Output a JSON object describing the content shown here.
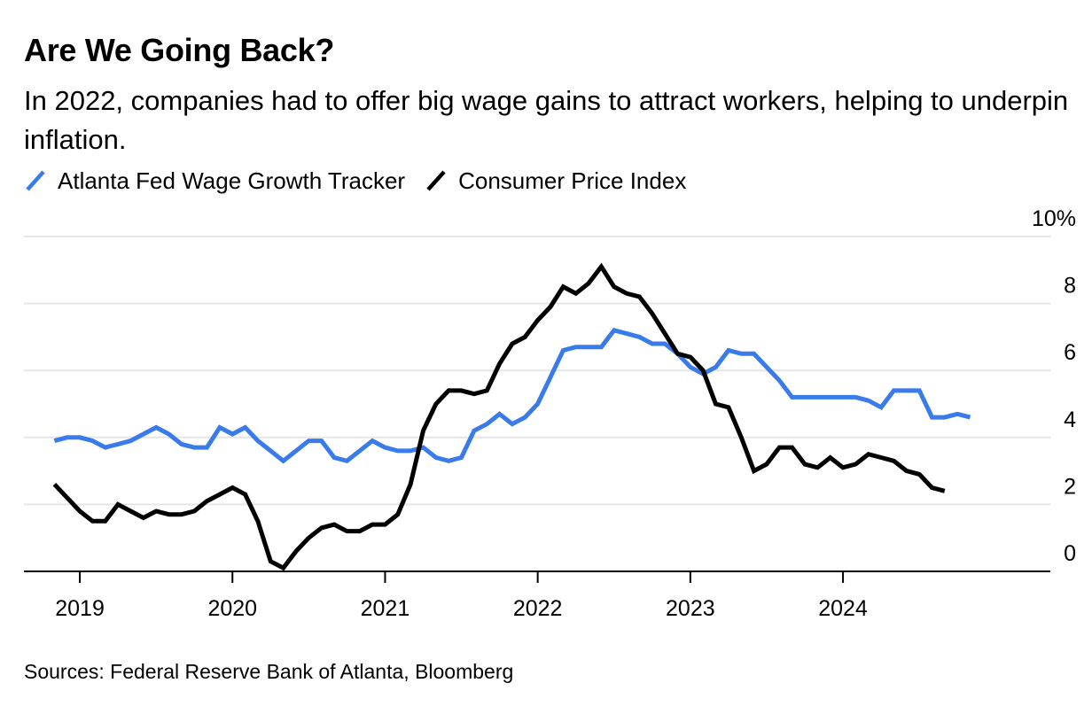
{
  "title": "Are We Going Back?",
  "subtitle": "In 2022, companies had to offer big wage gains to attract workers, helping to underpin inflation.",
  "source": "Sources: Federal Reserve Bank of Atlanta, Bloomberg",
  "colors": {
    "wage": "#3a7bec",
    "cpi": "#000000",
    "grid": "#e6e6e6",
    "axis": "#000000"
  },
  "chart_data": {
    "type": "line",
    "title": "Are We Going Back?",
    "subtitle": "In 2022, companies had to offer big wage gains to attract workers, helping to underpin inflation.",
    "xlabel": "",
    "ylabel": "",
    "ylim": [
      0,
      10
    ],
    "y_ticks": [
      0,
      2,
      4,
      6,
      8,
      10
    ],
    "y_tick_labels": [
      "0",
      "2",
      "4",
      "6",
      "8",
      "10%"
    ],
    "y_axis_position": "right",
    "x_tick_labels": [
      "2019",
      "2020",
      "2021",
      "2022",
      "2023",
      "2024"
    ],
    "x_range": [
      "2018-10",
      "2025-03"
    ],
    "grid": true,
    "legend_position": "top-left",
    "series": [
      {
        "name": "Atlanta Fed Wage Growth Tracker",
        "color": "#3a7bec",
        "points": [
          [
            "2018-11",
            3.9
          ],
          [
            "2018-12",
            4.0
          ],
          [
            "2019-01",
            4.0
          ],
          [
            "2019-02",
            3.9
          ],
          [
            "2019-03",
            3.7
          ],
          [
            "2019-04",
            3.8
          ],
          [
            "2019-05",
            3.9
          ],
          [
            "2019-06",
            4.1
          ],
          [
            "2019-07",
            4.3
          ],
          [
            "2019-08",
            4.1
          ],
          [
            "2019-09",
            3.8
          ],
          [
            "2019-10",
            3.7
          ],
          [
            "2019-11",
            3.7
          ],
          [
            "2019-12",
            4.3
          ],
          [
            "2020-01",
            4.1
          ],
          [
            "2020-02",
            4.3
          ],
          [
            "2020-03",
            3.9
          ],
          [
            "2020-04",
            3.6
          ],
          [
            "2020-05",
            3.3
          ],
          [
            "2020-06",
            3.6
          ],
          [
            "2020-07",
            3.9
          ],
          [
            "2020-08",
            3.9
          ],
          [
            "2020-09",
            3.4
          ],
          [
            "2020-10",
            3.3
          ],
          [
            "2020-11",
            3.6
          ],
          [
            "2020-12",
            3.9
          ],
          [
            "2021-01",
            3.7
          ],
          [
            "2021-02",
            3.6
          ],
          [
            "2021-03",
            3.6
          ],
          [
            "2021-04",
            3.7
          ],
          [
            "2021-05",
            3.4
          ],
          [
            "2021-06",
            3.3
          ],
          [
            "2021-07",
            3.4
          ],
          [
            "2021-08",
            4.2
          ],
          [
            "2021-09",
            4.4
          ],
          [
            "2021-10",
            4.7
          ],
          [
            "2021-11",
            4.4
          ],
          [
            "2021-12",
            4.6
          ],
          [
            "2022-01",
            5.0
          ],
          [
            "2022-02",
            5.8
          ],
          [
            "2022-03",
            6.6
          ],
          [
            "2022-04",
            6.7
          ],
          [
            "2022-05",
            6.7
          ],
          [
            "2022-06",
            6.7
          ],
          [
            "2022-07",
            7.2
          ],
          [
            "2022-08",
            7.1
          ],
          [
            "2022-09",
            7.0
          ],
          [
            "2022-10",
            6.8
          ],
          [
            "2022-11",
            6.8
          ],
          [
            "2022-12",
            6.5
          ],
          [
            "2023-01",
            6.1
          ],
          [
            "2023-02",
            5.9
          ],
          [
            "2023-03",
            6.1
          ],
          [
            "2023-04",
            6.6
          ],
          [
            "2023-05",
            6.5
          ],
          [
            "2023-06",
            6.5
          ],
          [
            "2023-07",
            6.1
          ],
          [
            "2023-08",
            5.7
          ],
          [
            "2023-09",
            5.2
          ],
          [
            "2023-10",
            5.2
          ],
          [
            "2023-11",
            5.2
          ],
          [
            "2023-12",
            5.2
          ],
          [
            "2024-01",
            5.2
          ],
          [
            "2024-02",
            5.2
          ],
          [
            "2024-03",
            5.1
          ],
          [
            "2024-04",
            4.9
          ],
          [
            "2024-05",
            5.4
          ],
          [
            "2024-06",
            5.4
          ],
          [
            "2024-07",
            5.4
          ],
          [
            "2024-08",
            4.6
          ],
          [
            "2024-09",
            4.6
          ],
          [
            "2024-10",
            4.7
          ],
          [
            "2024-11",
            4.6
          ]
        ]
      },
      {
        "name": "Consumer Price Index",
        "color": "#000000",
        "points": [
          [
            "2018-11",
            2.6
          ],
          [
            "2018-12",
            2.2
          ],
          [
            "2019-01",
            1.8
          ],
          [
            "2019-02",
            1.5
          ],
          [
            "2019-03",
            1.5
          ],
          [
            "2019-04",
            2.0
          ],
          [
            "2019-05",
            1.8
          ],
          [
            "2019-06",
            1.6
          ],
          [
            "2019-07",
            1.8
          ],
          [
            "2019-08",
            1.7
          ],
          [
            "2019-09",
            1.7
          ],
          [
            "2019-10",
            1.8
          ],
          [
            "2019-11",
            2.1
          ],
          [
            "2019-12",
            2.3
          ],
          [
            "2020-01",
            2.5
          ],
          [
            "2020-02",
            2.3
          ],
          [
            "2020-03",
            1.5
          ],
          [
            "2020-04",
            0.3
          ],
          [
            "2020-05",
            0.1
          ],
          [
            "2020-06",
            0.6
          ],
          [
            "2020-07",
            1.0
          ],
          [
            "2020-08",
            1.3
          ],
          [
            "2020-09",
            1.4
          ],
          [
            "2020-10",
            1.2
          ],
          [
            "2020-11",
            1.2
          ],
          [
            "2020-12",
            1.4
          ],
          [
            "2021-01",
            1.4
          ],
          [
            "2021-02",
            1.7
          ],
          [
            "2021-03",
            2.6
          ],
          [
            "2021-04",
            4.2
          ],
          [
            "2021-05",
            5.0
          ],
          [
            "2021-06",
            5.4
          ],
          [
            "2021-07",
            5.4
          ],
          [
            "2021-08",
            5.3
          ],
          [
            "2021-09",
            5.4
          ],
          [
            "2021-10",
            6.2
          ],
          [
            "2021-11",
            6.8
          ],
          [
            "2021-12",
            7.0
          ],
          [
            "2022-01",
            7.5
          ],
          [
            "2022-02",
            7.9
          ],
          [
            "2022-03",
            8.5
          ],
          [
            "2022-04",
            8.3
          ],
          [
            "2022-05",
            8.6
          ],
          [
            "2022-06",
            9.1
          ],
          [
            "2022-07",
            8.5
          ],
          [
            "2022-08",
            8.3
          ],
          [
            "2022-09",
            8.2
          ],
          [
            "2022-10",
            7.7
          ],
          [
            "2022-11",
            7.1
          ],
          [
            "2022-12",
            6.5
          ],
          [
            "2023-01",
            6.4
          ],
          [
            "2023-02",
            6.0
          ],
          [
            "2023-03",
            5.0
          ],
          [
            "2023-04",
            4.9
          ],
          [
            "2023-05",
            4.0
          ],
          [
            "2023-06",
            3.0
          ],
          [
            "2023-07",
            3.2
          ],
          [
            "2023-08",
            3.7
          ],
          [
            "2023-09",
            3.7
          ],
          [
            "2023-10",
            3.2
          ],
          [
            "2023-11",
            3.1
          ],
          [
            "2023-12",
            3.4
          ],
          [
            "2024-01",
            3.1
          ],
          [
            "2024-02",
            3.2
          ],
          [
            "2024-03",
            3.5
          ],
          [
            "2024-04",
            3.4
          ],
          [
            "2024-05",
            3.3
          ],
          [
            "2024-06",
            3.0
          ],
          [
            "2024-07",
            2.9
          ],
          [
            "2024-08",
            2.5
          ],
          [
            "2024-09",
            2.4
          ]
        ]
      }
    ]
  }
}
